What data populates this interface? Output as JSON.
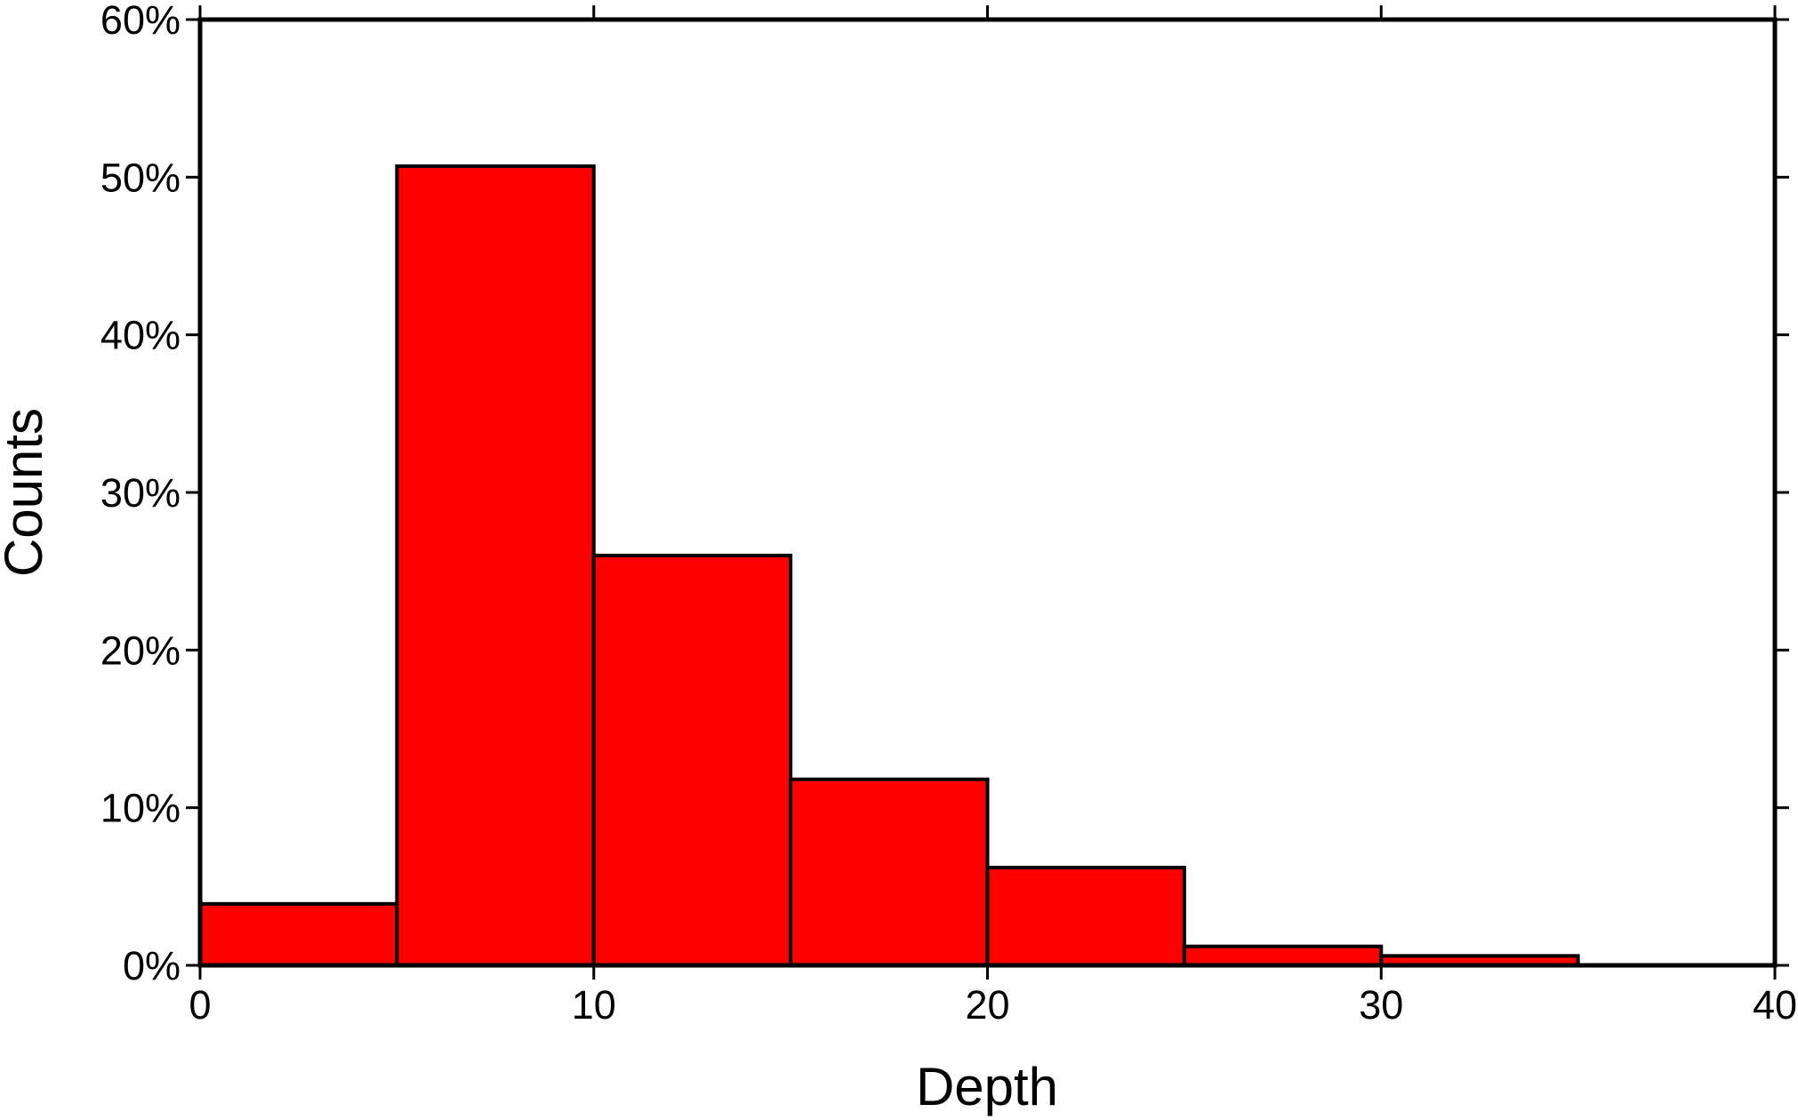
{
  "chart_data": {
    "type": "bar",
    "title": "",
    "xlabel": "Depth",
    "ylabel": "Counts",
    "bin_edges": [
      0,
      5,
      10,
      15,
      20,
      25,
      30,
      35,
      40
    ],
    "values": [
      3.9,
      50.7,
      26.0,
      11.8,
      6.2,
      1.2,
      0.6,
      0.0
    ],
    "value_unit": "%",
    "xlim": [
      0,
      40
    ],
    "ylim": [
      0,
      60
    ],
    "xticks": [
      0,
      10,
      20,
      30,
      40
    ],
    "xtick_labels": [
      "0",
      "10",
      "20",
      "30",
      "40"
    ],
    "yticks": [
      0,
      10,
      20,
      30,
      40,
      50,
      60
    ],
    "ytick_labels": [
      "0%",
      "10%",
      "20%",
      "30%",
      "40%",
      "50%",
      "60%"
    ],
    "grid": false,
    "legend": "none",
    "colors": {
      "bar_fill": "#ff0000",
      "bar_stroke": "#000000",
      "frame": "#000000",
      "background": "#ffffff"
    }
  }
}
